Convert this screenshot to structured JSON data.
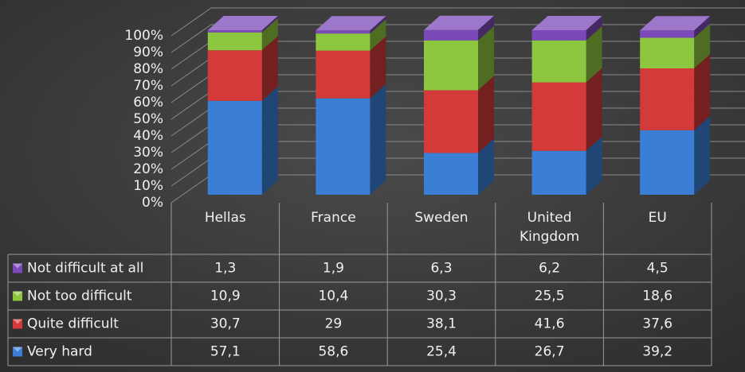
{
  "chart_data": {
    "type": "bar",
    "stacked": true,
    "categories": [
      "Hellas",
      "France",
      "Sweden",
      "United Kingdom",
      "EU"
    ],
    "series": [
      {
        "name": "Very hard",
        "color": "#3a7fd5",
        "values": [
          57.1,
          58.6,
          25.4,
          26.7,
          39.2
        ],
        "value_labels": [
          "57,1",
          "58,6",
          "25,4",
          "26,7",
          "39,2"
        ]
      },
      {
        "name": "Quite difficult",
        "color": "#d43a3a",
        "values": [
          30.7,
          29,
          38.1,
          41.6,
          37.6
        ],
        "value_labels": [
          "30,7",
          "29",
          "38,1",
          "41,6",
          "37,6"
        ]
      },
      {
        "name": "Not too difficult",
        "color": "#8dc63f",
        "values": [
          10.9,
          10.4,
          30.3,
          25.5,
          18.6
        ],
        "value_labels": [
          "10,9",
          "10,4",
          "30,3",
          "25,5",
          "18,6"
        ]
      },
      {
        "name": "Not difficult at all",
        "color": "#7b4ab8",
        "values": [
          1.3,
          1.9,
          6.3,
          6.2,
          4.5
        ],
        "value_labels": [
          "1,3",
          "1,9",
          "6,3",
          "6,2",
          "4,5"
        ]
      }
    ],
    "ylim": [
      0,
      100
    ],
    "yticks": [
      {
        "value": 0,
        "label": "0%"
      },
      {
        "value": 10,
        "label": "10%"
      },
      {
        "value": 20,
        "label": "20%"
      },
      {
        "value": 30,
        "label": "30%"
      },
      {
        "value": 40,
        "label": "40%"
      },
      {
        "value": 50,
        "label": "50%"
      },
      {
        "value": 60,
        "label": "60%"
      },
      {
        "value": 70,
        "label": "70%"
      },
      {
        "value": 80,
        "label": "80%"
      },
      {
        "value": 90,
        "label": "90%"
      },
      {
        "value": 100,
        "label": "100%"
      }
    ],
    "grid": true
  }
}
